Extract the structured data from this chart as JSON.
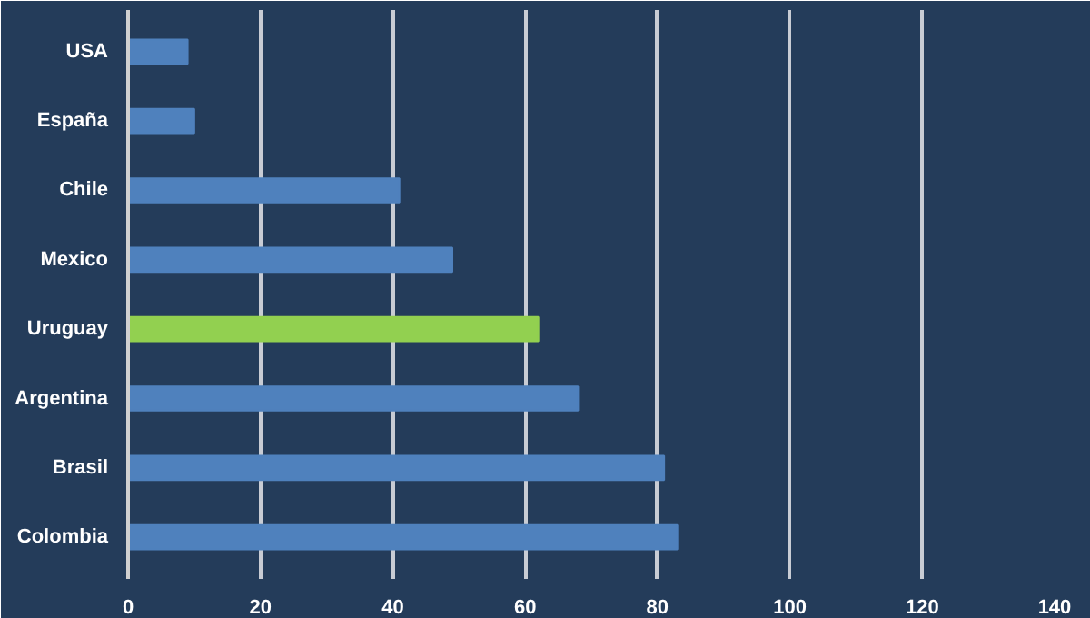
{
  "chart_data": {
    "type": "bar",
    "orientation": "horizontal",
    "categories": [
      "USA",
      "España",
      "Chile",
      "Mexico",
      "Uruguay",
      "Argentina",
      "Brasil",
      "Colombia"
    ],
    "values": [
      9,
      10,
      41,
      49,
      62,
      68,
      81,
      83
    ],
    "colors": [
      "#4f81bd",
      "#4f81bd",
      "#4f81bd",
      "#4f81bd",
      "#92d050",
      "#4f81bd",
      "#4f81bd",
      "#4f81bd"
    ],
    "xlim": [
      0,
      140
    ],
    "xticks": [
      0,
      20,
      40,
      60,
      80,
      100,
      120,
      140
    ],
    "grid": "x"
  }
}
